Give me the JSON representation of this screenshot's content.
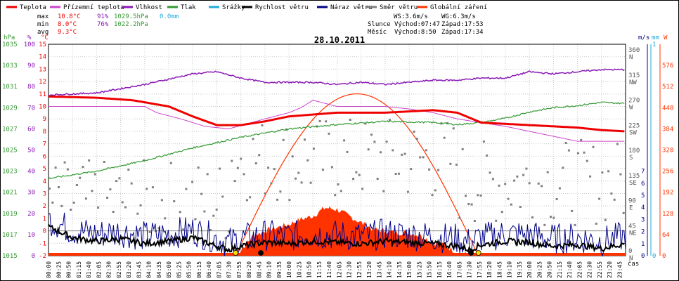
{
  "chart_data": {
    "type": "line",
    "title": "28.10.2011",
    "legend": [
      {
        "name": "Teplota",
        "color": "#ee0000"
      },
      {
        "name": "Přízemní teplota",
        "color": "#cc44cc"
      },
      {
        "name": "Vlhkost",
        "color": "#8a1ab5"
      },
      {
        "name": "Tlak",
        "color": "#339933"
      },
      {
        "name": "Srážky",
        "color": "#22aadd"
      },
      {
        "name": "Rychlost větru",
        "color": "#000000"
      },
      {
        "name": "Náraz větru",
        "color": "#000088"
      },
      {
        "name": "Směr větru",
        "color": "#808080"
      },
      {
        "name": "Globální záření",
        "color": "#ff3300"
      }
    ],
    "stats": {
      "max_label": "max",
      "min_label": "min",
      "avg_label": "avg",
      "max_temp": "10.8°C",
      "max_hum": "91%",
      "max_press": "1029.5hPa",
      "max_rain": "0.0mm",
      "min_temp": "8.0°C",
      "min_hum": "76%",
      "min_press": "1022.2hPa",
      "avg_temp": "9.3°C"
    },
    "info": {
      "ws": "WS:3.6m/s",
      "wg": "WG:6.3m/s",
      "sun_label": "Slunce",
      "sunrise": "Východ:07:47",
      "sunset": "Západ:17:53",
      "moon_label": "Měsíc",
      "moonrise": "Východ:8:50",
      "moonset": "Západ:17:34"
    },
    "axes": {
      "hpa": {
        "label": "hPa",
        "ticks": [
          "1035",
          "1033",
          "1031",
          "1029",
          "1027",
          "1025",
          "1023",
          "1021",
          "1019",
          "1017",
          "1015"
        ]
      },
      "pct": {
        "label": "%",
        "ticks": [
          "100",
          "90",
          "80",
          "70",
          "60",
          "50",
          "40",
          "30",
          "20",
          "10",
          "0"
        ]
      },
      "temp": {
        "label": "°C",
        "ticks": [
          "15",
          "14",
          "13",
          "12",
          "11",
          "10",
          "9",
          "8",
          "7",
          "6",
          "5",
          "4",
          "3",
          "2",
          "1",
          "0",
          "-1",
          "-2"
        ]
      },
      "ms": {
        "label": "m/s",
        "ticks": [
          "7",
          "6",
          "5",
          "4",
          "3",
          "2",
          "1",
          "0"
        ]
      },
      "mm": {
        "label": "mm",
        "ticks": [
          "1",
          "0"
        ]
      },
      "w": {
        "label": "W",
        "ticks": [
          "576",
          "512",
          "448",
          "384",
          "320",
          "256",
          "192",
          "128",
          "64",
          "0"
        ]
      },
      "dir_deg": [
        "360",
        "315",
        "270",
        "225",
        "180",
        "135",
        "90",
        "45",
        "0"
      ],
      "dir_lbl": [
        "N",
        "NW",
        "W",
        "SW",
        "S",
        "SE",
        "E",
        "NE",
        "N"
      ],
      "x_label": "čas",
      "x_ticks": [
        "00:00",
        "00:25",
        "00:50",
        "01:15",
        "01:40",
        "02:05",
        "02:30",
        "02:55",
        "03:20",
        "03:45",
        "04:10",
        "04:35",
        "05:00",
        "05:25",
        "05:50",
        "06:15",
        "06:40",
        "07:05",
        "07:30",
        "07:55",
        "08:20",
        "08:45",
        "09:10",
        "09:35",
        "10:00",
        "10:25",
        "10:50",
        "11:15",
        "11:40",
        "12:05",
        "12:30",
        "12:55",
        "13:20",
        "13:45",
        "14:10",
        "14:35",
        "15:00",
        "15:25",
        "15:50",
        "16:15",
        "16:40",
        "17:05",
        "17:30",
        "17:55",
        "18:20",
        "18:45",
        "19:10",
        "19:35",
        "20:00",
        "20:25",
        "20:50",
        "21:15",
        "21:40",
        "22:05",
        "22:30",
        "22:55",
        "23:20",
        "23:45"
      ]
    },
    "series": [
      {
        "name": "Teplota",
        "unit": "°C",
        "x": [
          0,
          2,
          3.5,
          5,
          6,
          7,
          8,
          9,
          10,
          12,
          14,
          16,
          17,
          18,
          19,
          20,
          21,
          22,
          23,
          24
        ],
        "values": [
          10.8,
          10.7,
          10.5,
          10.0,
          9.2,
          8.5,
          8.5,
          8.8,
          9.2,
          9.5,
          9.5,
          9.7,
          9.5,
          8.7,
          8.6,
          8.5,
          8.4,
          8.3,
          8.1,
          8.0
        ]
      },
      {
        "name": "Přízemní teplota",
        "unit": "°C",
        "x": [
          0,
          4,
          4.5,
          5.5,
          6.5,
          7.5,
          9,
          10,
          10.5,
          11,
          12,
          14,
          15,
          16,
          17,
          18,
          19,
          20,
          21,
          22,
          24
        ],
        "values": [
          10.0,
          10.0,
          9.5,
          9.0,
          8.4,
          8.2,
          9.0,
          9.5,
          9.9,
          10.5,
          10.0,
          10.0,
          9.8,
          9.5,
          9.0,
          8.7,
          8.4,
          8.0,
          7.6,
          7.2,
          7.2
        ]
      },
      {
        "name": "Vlhkost",
        "unit": "%",
        "x": [
          0,
          2,
          4,
          6,
          7,
          8,
          9,
          10,
          11,
          12,
          13,
          14,
          15,
          16,
          17,
          18,
          19,
          20,
          21,
          22,
          23,
          24
        ],
        "values": [
          76,
          77,
          81,
          86,
          87,
          84,
          82,
          82,
          82,
          81,
          82,
          81,
          82,
          83,
          83,
          84,
          84,
          87,
          86,
          87,
          88,
          88
        ]
      },
      {
        "name": "Tlak",
        "unit": "hPa",
        "x": [
          0,
          2,
          4,
          6,
          8,
          10,
          12,
          14,
          16,
          17,
          18,
          19,
          20,
          21,
          22,
          23,
          24
        ],
        "values": [
          1022.3,
          1023.0,
          1024.0,
          1025.2,
          1026.2,
          1027.0,
          1027.4,
          1027.7,
          1027.6,
          1027.4,
          1027.6,
          1028.0,
          1028.6,
          1029.0,
          1029.2,
          1029.5,
          1029.4
        ]
      },
      {
        "name": "Rychlost větru",
        "unit": "m/s",
        "x": [
          0,
          1,
          2,
          3,
          4,
          5,
          6,
          7,
          7.5,
          8,
          9,
          10,
          11,
          12,
          13,
          14,
          15,
          16,
          17,
          17.5,
          18,
          19,
          20,
          21,
          22,
          23,
          24
        ],
        "values": [
          2.4,
          1.5,
          1.2,
          1.4,
          1.0,
          1.2,
          1.5,
          0.8,
          0.5,
          0.8,
          1.1,
          1.0,
          1.2,
          1.1,
          1.0,
          1.2,
          1.1,
          1.0,
          0.8,
          0.5,
          0.9,
          1.2,
          1.1,
          0.8,
          0.9,
          0.6,
          1.0
        ]
      },
      {
        "name": "Globální záření",
        "unit": "W",
        "x": [
          7.8,
          8.5,
          9,
          10,
          10.5,
          11,
          11.5,
          12,
          12.5,
          13,
          13.5,
          14,
          14.5,
          15,
          15.5,
          16,
          16.5,
          17,
          17.6
        ],
        "values": [
          0,
          60,
          75,
          95,
          110,
          120,
          145,
          140,
          120,
          100,
          80,
          75,
          70,
          70,
          60,
          40,
          30,
          10,
          0
        ]
      }
    ]
  }
}
